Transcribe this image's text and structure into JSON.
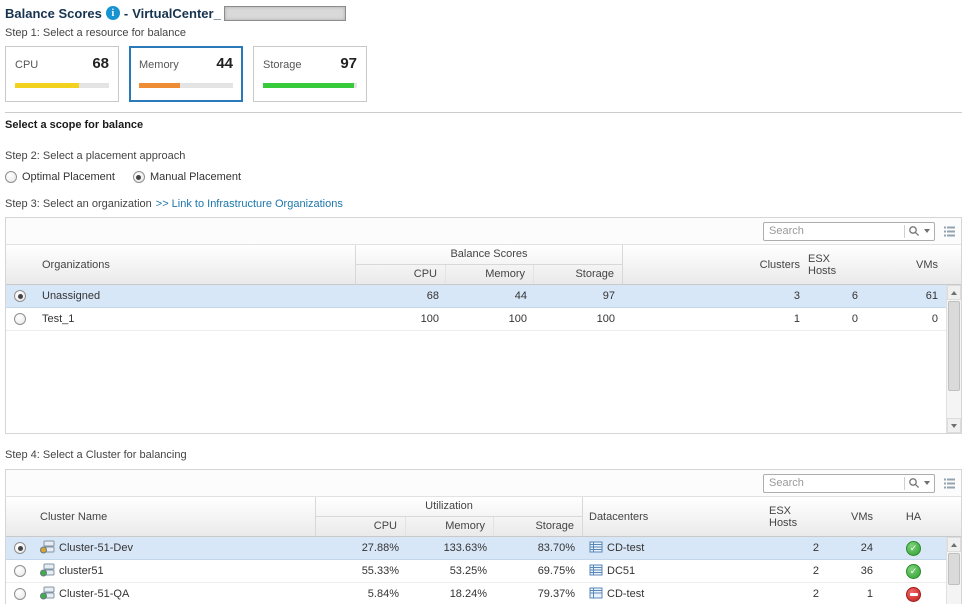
{
  "header": {
    "title": "Balance Scores",
    "info_glyph": "i",
    "separator": "-",
    "subtitle": "VirtualCenter_"
  },
  "scope_title": "Select a scope for balance",
  "steps": {
    "step1": "Step 1: Select a resource for balance",
    "step2": "Step 2: Select a placement approach",
    "step3": "Step 3: Select an organization",
    "step3_link": ">> Link to Infrastructure Organizations",
    "step4": "Step 4: Select a Cluster for balancing"
  },
  "accent_color": "#2a7ab9",
  "resources": [
    {
      "label": "CPU",
      "value": 68,
      "color": "#f2d21f",
      "selected": false
    },
    {
      "label": "Memory",
      "value": 44,
      "color": "#ef8d34",
      "selected": true
    },
    {
      "label": "Storage",
      "value": 97,
      "color": "#37cb3c",
      "selected": false
    }
  ],
  "placement_options": [
    {
      "label": "Optimal Placement",
      "selected": false
    },
    {
      "label": "Manual Placement",
      "selected": true
    }
  ],
  "org_table": {
    "search_placeholder": "Search",
    "group_header": "Balance Scores",
    "columns": {
      "organizations": "Organizations",
      "cpu": "CPU",
      "memory": "Memory",
      "storage": "Storage",
      "clusters": "Clusters",
      "esx_hosts": "ESX Hosts",
      "vms": "VMs"
    },
    "rows": [
      {
        "name": "Unassigned",
        "cpu": "68",
        "memory": "44",
        "storage": "97",
        "clusters": "3",
        "esx_hosts": "6",
        "vms": "61",
        "selected": true
      },
      {
        "name": "Test_1",
        "cpu": "100",
        "memory": "100",
        "storage": "100",
        "clusters": "1",
        "esx_hosts": "0",
        "vms": "0",
        "selected": false
      }
    ]
  },
  "cluster_table": {
    "search_placeholder": "Search",
    "group_header": "Utilization",
    "columns": {
      "cluster_name": "Cluster Name",
      "cpu": "CPU",
      "memory": "Memory",
      "storage": "Storage",
      "datacenters": "Datacenters",
      "esx_hosts": "ESX Hosts",
      "vms": "VMs",
      "ha": "HA"
    },
    "rows": [
      {
        "name": "Cluster-51-Dev",
        "cpu": "27.88%",
        "memory": "133.63%",
        "storage": "83.70%",
        "datacenter": "CD-test",
        "esx_hosts": "2",
        "vms": "24",
        "ha": "enabled",
        "status_color": "#d9a531",
        "selected": true
      },
      {
        "name": "cluster51",
        "cpu": "55.33%",
        "memory": "53.25%",
        "storage": "69.75%",
        "datacenter": "DC51",
        "esx_hosts": "2",
        "vms": "36",
        "ha": "enabled",
        "status_color": "#3fae49",
        "selected": false
      },
      {
        "name": "Cluster-51-QA",
        "cpu": "5.84%",
        "memory": "18.24%",
        "storage": "79.37%",
        "datacenter": "CD-test",
        "esx_hosts": "2",
        "vms": "1",
        "ha": "disabled",
        "status_color": "#3fae49",
        "selected": false
      }
    ]
  },
  "icons": {
    "ha_enabled_glyph": "✓"
  }
}
